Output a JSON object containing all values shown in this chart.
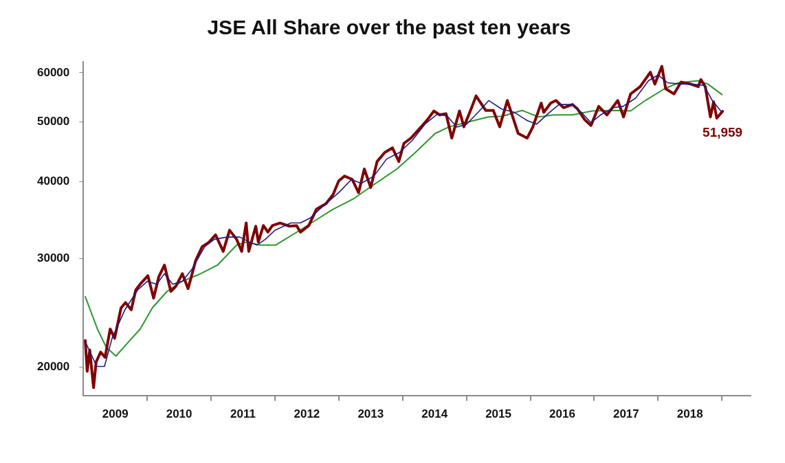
{
  "chart_data": {
    "type": "line",
    "title": "JSE All Share over the past ten years",
    "log": true,
    "grid": false,
    "legend": false,
    "marker": "none",
    "line_style": "solid",
    "xlim": [
      2009,
      2019.45
    ],
    "xticks": [
      {
        "value": 2009.5,
        "label": "2009"
      },
      {
        "value": 2010,
        "label": null
      },
      {
        "value": 2010.5,
        "label": "2010"
      },
      {
        "value": 2011,
        "label": null
      },
      {
        "value": 2011.5,
        "label": "2011"
      },
      {
        "value": 2012,
        "label": null
      },
      {
        "value": 2012.5,
        "label": "2012"
      },
      {
        "value": 2013,
        "label": null
      },
      {
        "value": 2013.5,
        "label": "2013"
      },
      {
        "value": 2014,
        "label": null
      },
      {
        "value": 2014.5,
        "label": "2014"
      },
      {
        "value": 2015,
        "label": null
      },
      {
        "value": 2015.5,
        "label": "2015"
      },
      {
        "value": 2016,
        "label": null
      },
      {
        "value": 2016.5,
        "label": "2016"
      },
      {
        "value": 2017,
        "label": null
      },
      {
        "value": 2017.5,
        "label": "2017"
      },
      {
        "value": 2018,
        "label": null
      },
      {
        "value": 2018.5,
        "label": "2018"
      },
      {
        "value": 2019,
        "label": null
      }
    ],
    "ylim": [
      18000,
      62500
    ],
    "yticks": [
      20000,
      30000,
      40000,
      50000,
      60000
    ],
    "annotations": [
      {
        "text": "51,959",
        "x": 2019.01,
        "y": 51959
      }
    ],
    "series": [
      {
        "color": "#800000",
        "x": [
          2009.03,
          2009.06,
          2009.1,
          2009.16,
          2009.2,
          2009.27,
          2009.34,
          2009.42,
          2009.49,
          2009.59,
          2009.66,
          2009.75,
          2009.82,
          2009.89,
          2010.01,
          2010.1,
          2010.18,
          2010.27,
          2010.37,
          2010.45,
          2010.55,
          2010.64,
          2010.76,
          2010.86,
          2010.97,
          2011.07,
          2011.19,
          2011.29,
          2011.4,
          2011.48,
          2011.55,
          2011.59,
          2011.7,
          2011.74,
          2011.82,
          2011.89,
          2011.96,
          2012.08,
          2012.23,
          2012.34,
          2012.4,
          2012.53,
          2012.65,
          2012.8,
          2012.91,
          2013,
          2013.09,
          2013.21,
          2013.31,
          2013.4,
          2013.5,
          2013.6,
          2013.72,
          2013.84,
          2013.94,
          2014.02,
          2014.13,
          2014.29,
          2014.39,
          2014.49,
          2014.58,
          2014.68,
          2014.77,
          2014.89,
          2014.96,
          2015.08,
          2015.15,
          2015.3,
          2015.42,
          2015.52,
          2015.64,
          2015.81,
          2015.95,
          2016.04,
          2016.17,
          2016.21,
          2016.32,
          2016.4,
          2016.52,
          2016.66,
          2016.74,
          2016.85,
          2016.95,
          2017.07,
          2017.2,
          2017.37,
          2017.46,
          2017.57,
          2017.72,
          2017.88,
          2017.95,
          2018.06,
          2018.12,
          2018.25,
          2018.36,
          2018.51,
          2018.63,
          2018.67,
          2018.74,
          2018.82,
          2018.87,
          2018.92,
          2019.01
        ],
        "values": [
          22090,
          19700,
          21320,
          18530,
          20390,
          21160,
          20750,
          23060,
          22280,
          24950,
          25450,
          24770,
          26670,
          27260,
          28140,
          25880,
          28000,
          29270,
          26530,
          27060,
          28350,
          26810,
          29790,
          31350,
          31900,
          32780,
          30810,
          33340,
          32230,
          30810,
          34260,
          30810,
          33840,
          31900,
          33920,
          33100,
          33920,
          34260,
          33840,
          33920,
          33100,
          33920,
          36060,
          36810,
          38090,
          40090,
          40800,
          40300,
          38360,
          41900,
          39100,
          43080,
          44560,
          45340,
          43080,
          46100,
          47020,
          49040,
          50380,
          52030,
          51270,
          51500,
          47020,
          52030,
          49040,
          52660,
          55040,
          52140,
          52140,
          49040,
          54100,
          47840,
          47020,
          49040,
          53580,
          51760,
          53580,
          54100,
          52660,
          53300,
          52400,
          50380,
          49280,
          52920,
          51270,
          54100,
          50880,
          55440,
          56960,
          60120,
          57520,
          61460,
          56520,
          55440,
          57940,
          57520,
          56960,
          58500,
          56960,
          50880,
          53840,
          50640,
          51959
        ]
      },
      {
        "color": "#1c1c80",
        "x": [
          2009.03,
          2009.21,
          2009.33,
          2009.45,
          2009.65,
          2009.85,
          2010,
          2010.15,
          2010.27,
          2010.4,
          2010.55,
          2010.7,
          2010.9,
          2011.05,
          2011.25,
          2011.45,
          2011.6,
          2011.72,
          2011.85,
          2012,
          2012.25,
          2012.4,
          2012.55,
          2012.75,
          2013,
          2013.2,
          2013.35,
          2013.55,
          2013.75,
          2013.95,
          2014.15,
          2014.35,
          2014.55,
          2014.7,
          2014.85,
          2015,
          2015.2,
          2015.35,
          2015.55,
          2015.75,
          2015.95,
          2016.1,
          2016.3,
          2016.45,
          2016.65,
          2016.8,
          2016.95,
          2017.1,
          2017.3,
          2017.45,
          2017.65,
          2017.85,
          2018,
          2018.15,
          2018.35,
          2018.55,
          2018.72,
          2018.85,
          2019
        ],
        "values": [
          22000,
          20050,
          20050,
          22280,
          24770,
          26670,
          27550,
          27260,
          28350,
          27260,
          27550,
          28820,
          31350,
          32230,
          32500,
          32500,
          31900,
          31540,
          32230,
          33330,
          34260,
          34260,
          34880,
          36440,
          38360,
          40300,
          39700,
          40800,
          43500,
          44560,
          46600,
          49540,
          51500,
          51000,
          49000,
          49500,
          52000,
          54100,
          52400,
          51760,
          50200,
          49540,
          51760,
          53300,
          53300,
          51760,
          49800,
          51270,
          52660,
          52920,
          54600,
          58240,
          59500,
          57800,
          57520,
          57500,
          57240,
          54100,
          51760
        ]
      },
      {
        "color": "#2e962e",
        "x": [
          2009.03,
          2009.22,
          2009.36,
          2009.51,
          2009.66,
          2009.89,
          2010.08,
          2010.31,
          2010.54,
          2010.8,
          2011.1,
          2011.4,
          2011.55,
          2011.77,
          2012.01,
          2012.39,
          2012.69,
          2012.91,
          2013.23,
          2013.53,
          2013.91,
          2014.2,
          2014.51,
          2014.73,
          2015.04,
          2015.34,
          2015.56,
          2015.87,
          2016.13,
          2016.36,
          2016.66,
          2016.97,
          2017.31,
          2017.57,
          2017.8,
          2018.1,
          2018.32,
          2018.63,
          2018.78,
          2019
        ],
        "values": [
          26020,
          23060,
          21530,
          20850,
          21700,
          23060,
          24950,
          26530,
          27550,
          28230,
          29270,
          31540,
          31900,
          31540,
          31540,
          33330,
          34880,
          36060,
          37480,
          39400,
          41900,
          44560,
          47840,
          49040,
          49980,
          50880,
          51010,
          52140,
          50880,
          51270,
          51270,
          52030,
          52140,
          52030,
          54100,
          56520,
          57800,
          58240,
          57520,
          55320
        ]
      }
    ]
  }
}
